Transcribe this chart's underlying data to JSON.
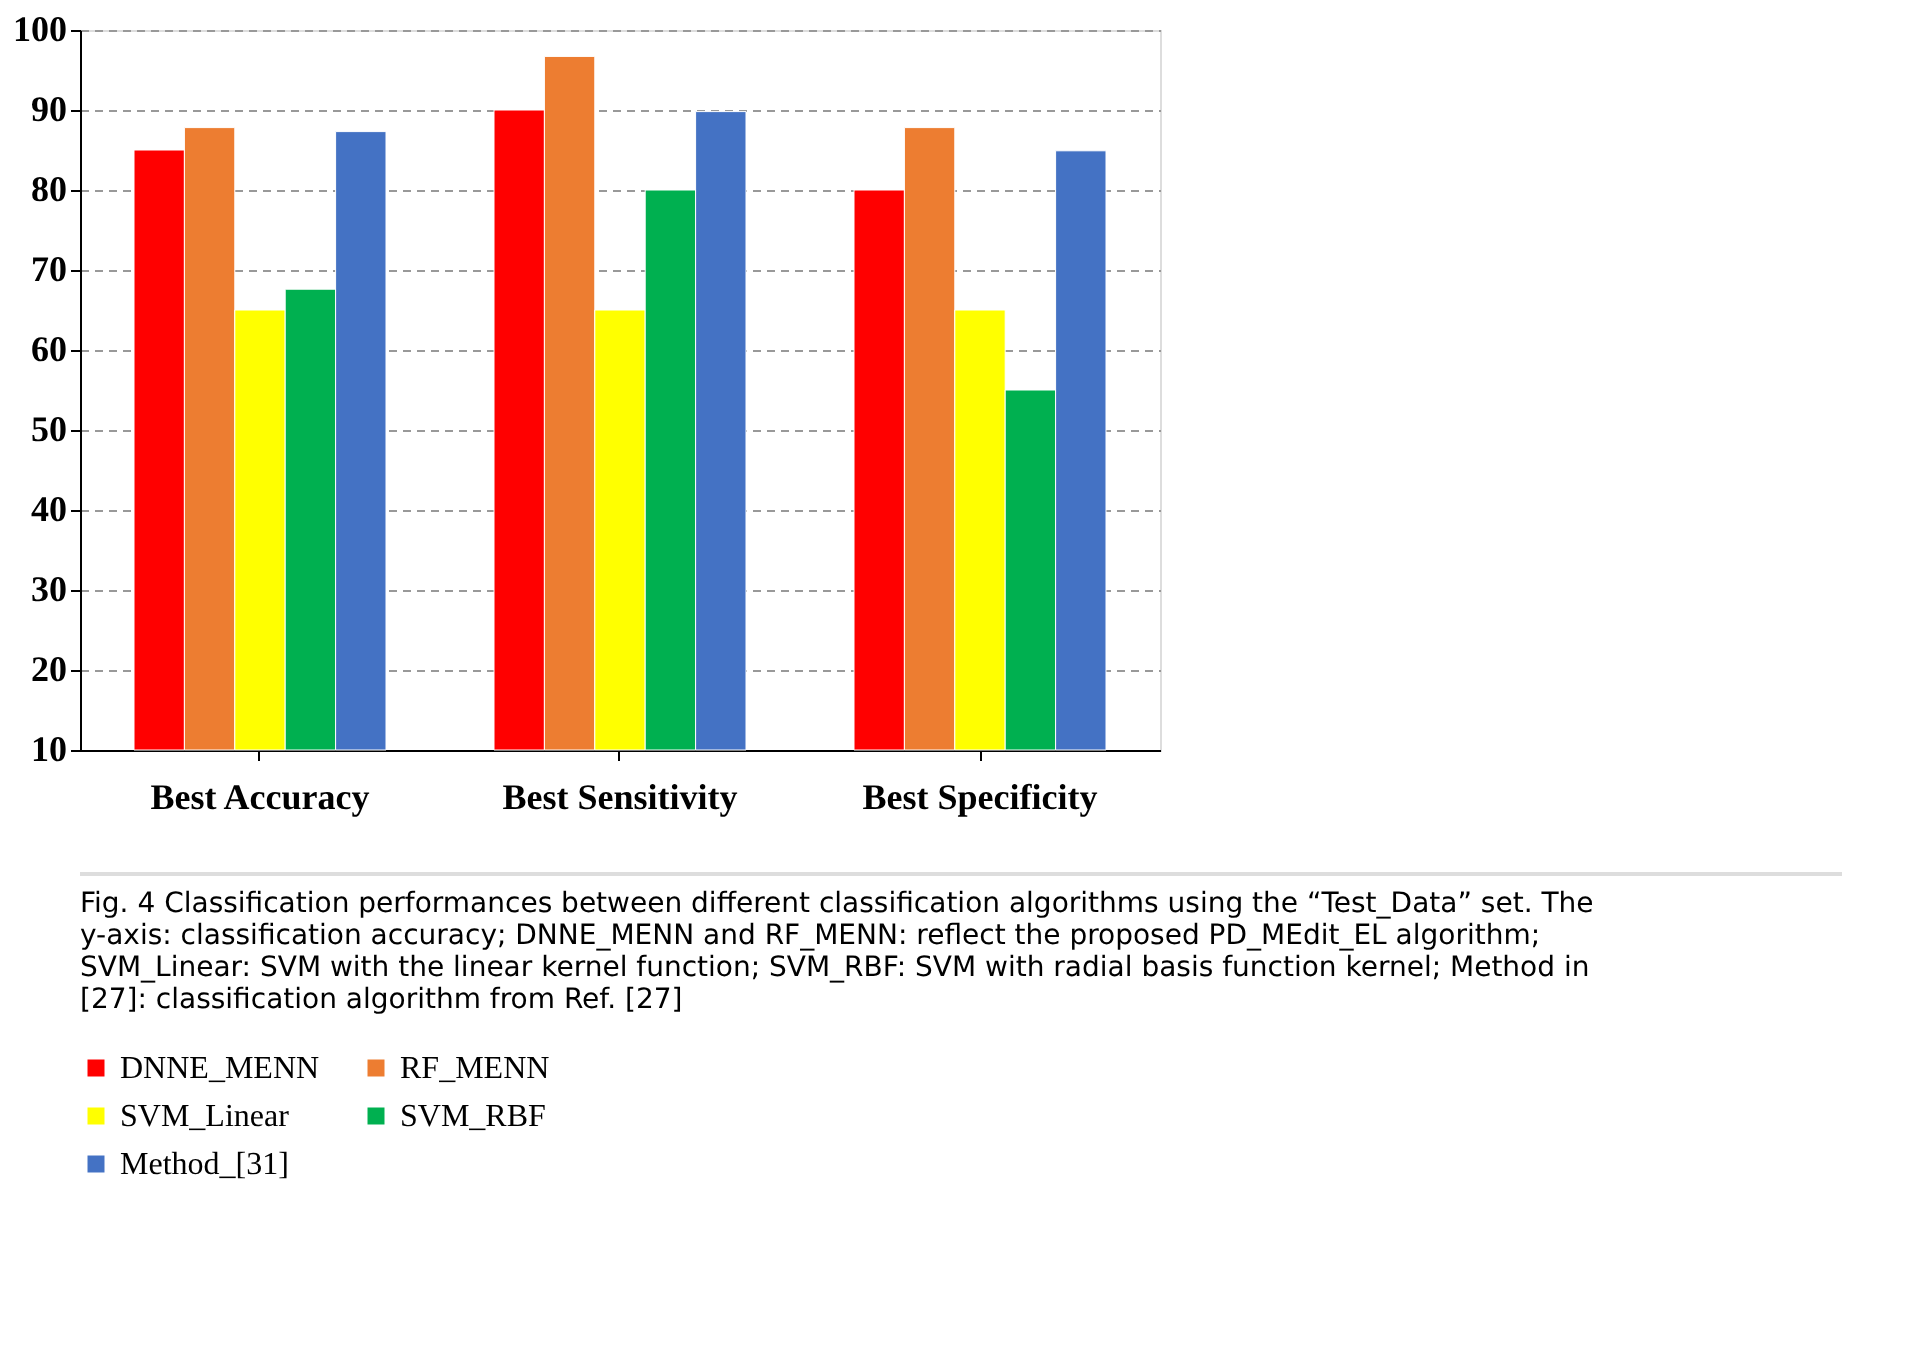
{
  "chart_data": {
    "type": "bar",
    "categories": [
      "Best Accuracy",
      "Best Sensitivity",
      "Best Specificity"
    ],
    "series": [
      {
        "name": "DNNE_MENN",
        "color": "#ff0000",
        "values": [
          85,
          90,
          80
        ]
      },
      {
        "name": "RF_MENN",
        "color": "#ed7d31",
        "values": [
          87.8,
          96.7,
          87.8
        ]
      },
      {
        "name": "SVM_Linear",
        "color": "#ffff00",
        "values": [
          65,
          65,
          65
        ]
      },
      {
        "name": "SVM_RBF",
        "color": "#00b050",
        "values": [
          67.6,
          80,
          55
        ]
      },
      {
        "name": "Method_[31]",
        "color": "#4472c4",
        "values": [
          87.3,
          89.8,
          84.9
        ]
      }
    ],
    "ylim": [
      10,
      100
    ],
    "yticks": [
      10,
      20,
      30,
      40,
      50,
      60,
      70,
      80,
      90,
      100
    ],
    "grid": "y",
    "legend": "bottom",
    "annotations": [
      "Fig. 4  Classification performances between different classification algorithms using the “Test_Data” set. The y-axis: classification accuracy; DNNE_MENN and RF_MENN: reflect the proposed PD_MEdit_EL algorithm; SVM_Linear: SVM with the linear kernel function; SVM_RBF: SVM with radial basis function kernel; Method in [27]: classification algorithm from Ref. [27]"
    ]
  }
}
